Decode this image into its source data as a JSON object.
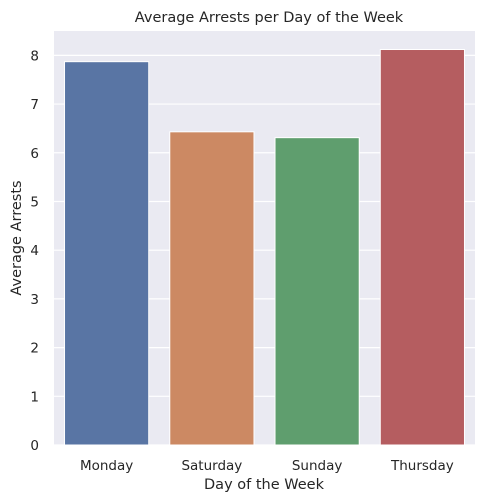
{
  "chart_data": {
    "type": "bar",
    "title": "Average Arrests per Day of the Week",
    "xlabel": "Day of the Week",
    "ylabel": "Average Arrests",
    "categories": [
      "Monday",
      "Saturday",
      "Sunday",
      "Thursday"
    ],
    "values": [
      7.87,
      6.43,
      6.31,
      8.12
    ],
    "ylim": [
      0,
      8.5
    ],
    "yticks": [
      "0",
      "1",
      "2",
      "3",
      "4",
      "5",
      "6",
      "7",
      "8"
    ],
    "grid": true,
    "colors": [
      "#5975a4",
      "#cc8963",
      "#5f9e6e",
      "#b55d60"
    ],
    "background": "#eaeaf2"
  }
}
